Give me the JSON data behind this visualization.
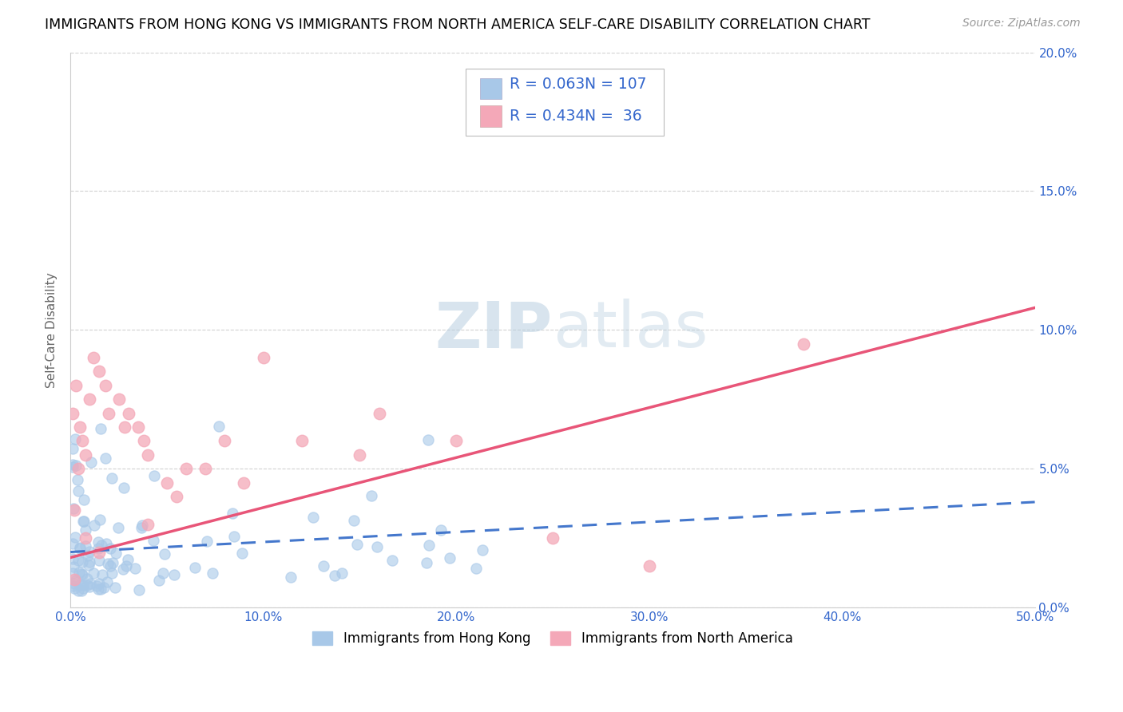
{
  "title": "IMMIGRANTS FROM HONG KONG VS IMMIGRANTS FROM NORTH AMERICA SELF-CARE DISABILITY CORRELATION CHART",
  "source": "Source: ZipAtlas.com",
  "ylabel": "Self-Care Disability",
  "xlim": [
    0.0,
    0.5
  ],
  "ylim": [
    0.0,
    0.2
  ],
  "xticks": [
    0.0,
    0.1,
    0.2,
    0.3,
    0.4,
    0.5
  ],
  "yticks": [
    0.0,
    0.05,
    0.1,
    0.15,
    0.2
  ],
  "xticklabels": [
    "0.0%",
    "10.0%",
    "20.0%",
    "30.0%",
    "40.0%",
    "50.0%"
  ],
  "right_yticklabels": [
    "0.0%",
    "5.0%",
    "10.0%",
    "15.0%",
    "20.0%"
  ],
  "hk_color": "#a8c8e8",
  "na_color": "#f4a8b8",
  "hk_line_color": "#4477cc",
  "na_line_color": "#e85578",
  "legend_R_hk": "0.063",
  "legend_N_hk": "107",
  "legend_R_na": "0.434",
  "legend_N_na": "36",
  "legend_text_color": "#3366cc",
  "watermark_color": "#ccdded",
  "background_color": "#ffffff",
  "grid_color": "#cccccc",
  "bottom_label_hk": "Immigrants from Hong Kong",
  "bottom_label_na": "Immigrants from North America"
}
